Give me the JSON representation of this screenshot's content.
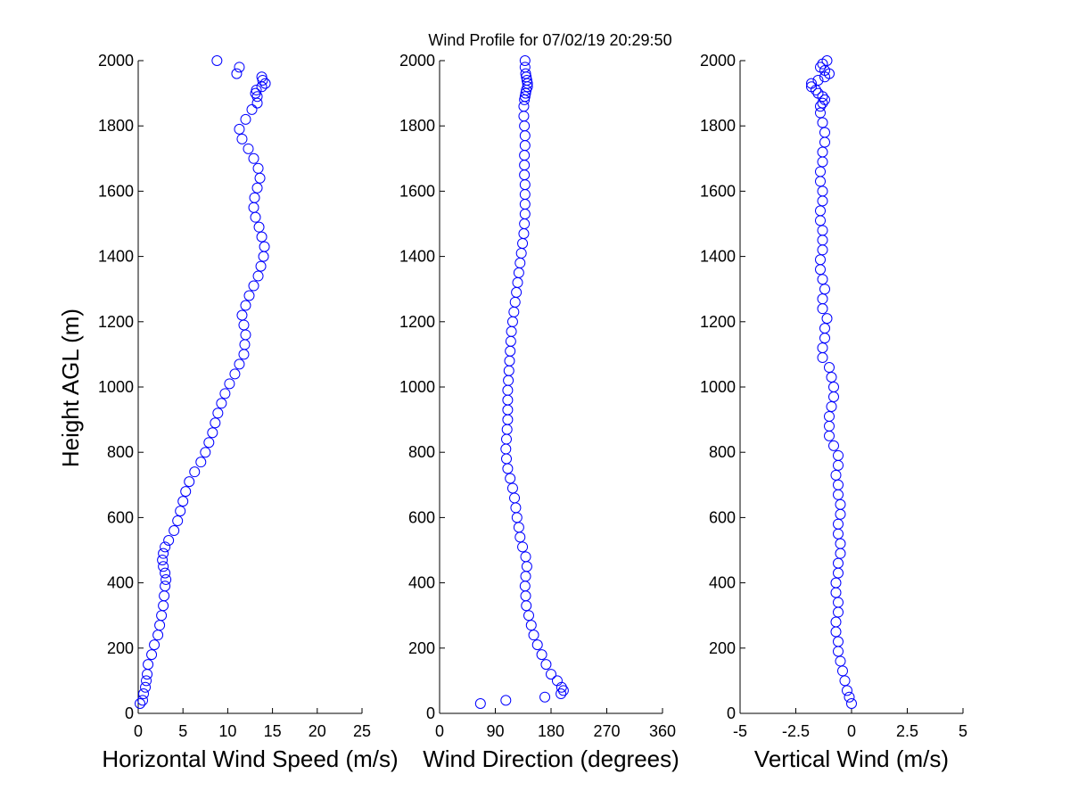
{
  "figure": {
    "title": "Wind Profile for  07/02/19 20:29:50",
    "ylabel": "Height AGL (m)",
    "marker_color": "#0000ff",
    "axis_color": "#000000"
  },
  "chart_data": [
    {
      "type": "scatter",
      "title": "Wind Profile for  07/02/19 20:29:50",
      "xlabel": "Horizontal Wind Speed (m/s)",
      "ylabel": "Height AGL (m)",
      "xlim": [
        0,
        25
      ],
      "ylim": [
        0,
        2000
      ],
      "xticks": [
        "0",
        "5",
        "10",
        "15",
        "20",
        "25"
      ],
      "yticks": [
        "0",
        "200",
        "400",
        "600",
        "800",
        "1000",
        "1200",
        "1400",
        "1600",
        "1800",
        "2000"
      ],
      "grid": false,
      "legend": "none",
      "x": [
        0.2,
        0.5,
        0.6,
        0.8,
        0.9,
        1.0,
        1.1,
        1.5,
        1.8,
        2.2,
        2.4,
        2.6,
        2.8,
        2.9,
        3.0,
        3.1,
        3.0,
        2.8,
        2.7,
        2.8,
        3.0,
        3.4,
        4.0,
        4.4,
        4.7,
        5.0,
        5.3,
        5.7,
        6.3,
        7.0,
        7.5,
        7.9,
        8.3,
        8.6,
        8.9,
        9.3,
        9.7,
        10.2,
        10.8,
        11.3,
        11.8,
        11.9,
        12.0,
        11.8,
        11.6,
        12.0,
        12.4,
        12.9,
        13.4,
        13.7,
        14.0,
        14.1,
        13.8,
        13.5,
        13.1,
        12.9,
        13.0,
        13.3,
        13.6,
        13.4,
        12.9,
        12.3,
        11.6,
        11.3,
        12.0,
        12.7,
        13.3,
        13.3,
        13.1,
        13.2,
        13.8,
        14.2,
        13.9,
        13.8,
        11.0,
        11.3,
        8.8
      ],
      "y": [
        30,
        40,
        60,
        80,
        100,
        120,
        150,
        180,
        210,
        240,
        270,
        300,
        330,
        360,
        390,
        410,
        430,
        450,
        470,
        490,
        510,
        530,
        560,
        590,
        620,
        650,
        680,
        710,
        740,
        770,
        800,
        830,
        860,
        890,
        920,
        950,
        980,
        1010,
        1040,
        1070,
        1100,
        1130,
        1160,
        1190,
        1220,
        1250,
        1280,
        1310,
        1340,
        1370,
        1400,
        1430,
        1460,
        1490,
        1520,
        1550,
        1580,
        1610,
        1640,
        1670,
        1700,
        1730,
        1760,
        1790,
        1820,
        1850,
        1870,
        1890,
        1900,
        1910,
        1920,
        1930,
        1940,
        1950,
        1960,
        1980,
        2000
      ]
    },
    {
      "type": "scatter",
      "xlabel": "Wind Direction (degrees)",
      "xlim": [
        0,
        360
      ],
      "ylim": [
        0,
        2000
      ],
      "xticks": [
        "0",
        "90",
        "180",
        "270",
        "360"
      ],
      "yticks": [
        "0",
        "200",
        "400",
        "600",
        "800",
        "1000",
        "1200",
        "1400",
        "1600",
        "1800",
        "2000"
      ],
      "grid": false,
      "legend": "none",
      "x": [
        66,
        107,
        170,
        196,
        200,
        197,
        190,
        180,
        172,
        165,
        158,
        152,
        148,
        144,
        140,
        139,
        138,
        139,
        141,
        139,
        134,
        130,
        128,
        125,
        123,
        121,
        118,
        114,
        110,
        108,
        107,
        108,
        109,
        110,
        110,
        110,
        110,
        111,
        112,
        113,
        114,
        115,
        116,
        118,
        120,
        122,
        124,
        126,
        128,
        130,
        132,
        134,
        136,
        137,
        138,
        138,
        138,
        138,
        137,
        137,
        137,
        138,
        138,
        137,
        136,
        136,
        137,
        138,
        139,
        140,
        142,
        142,
        141,
        140,
        139,
        138,
        138
      ],
      "y": [
        30,
        40,
        50,
        60,
        70,
        80,
        100,
        120,
        150,
        180,
        210,
        240,
        270,
        300,
        330,
        360,
        390,
        420,
        450,
        480,
        510,
        540,
        570,
        600,
        630,
        660,
        690,
        720,
        750,
        780,
        810,
        840,
        870,
        900,
        930,
        960,
        990,
        1020,
        1050,
        1080,
        1110,
        1140,
        1170,
        1200,
        1230,
        1260,
        1290,
        1320,
        1350,
        1380,
        1410,
        1440,
        1470,
        1500,
        1530,
        1560,
        1590,
        1620,
        1650,
        1680,
        1710,
        1740,
        1770,
        1800,
        1830,
        1860,
        1880,
        1890,
        1900,
        1910,
        1920,
        1930,
        1940,
        1950,
        1960,
        1980,
        2000
      ]
    },
    {
      "type": "scatter",
      "xlabel": "Vertical Wind (m/s)",
      "xlim": [
        -5,
        5
      ],
      "ylim": [
        0,
        2000
      ],
      "xticks": [
        "-5",
        "-2.5",
        "0",
        "2.5",
        "5"
      ],
      "yticks": [
        "0",
        "200",
        "400",
        "600",
        "800",
        "1000",
        "1200",
        "1400",
        "1600",
        "1800",
        "2000"
      ],
      "grid": false,
      "legend": "none",
      "x": [
        0.0,
        -0.1,
        -0.2,
        -0.3,
        -0.4,
        -0.5,
        -0.6,
        -0.6,
        -0.7,
        -0.7,
        -0.6,
        -0.6,
        -0.7,
        -0.7,
        -0.6,
        -0.6,
        -0.5,
        -0.5,
        -0.6,
        -0.6,
        -0.5,
        -0.5,
        -0.6,
        -0.6,
        -0.7,
        -0.6,
        -0.6,
        -0.8,
        -1.0,
        -1.0,
        -1.0,
        -0.9,
        -0.8,
        -0.8,
        -0.9,
        -1.0,
        -1.3,
        -1.3,
        -1.2,
        -1.2,
        -1.1,
        -1.3,
        -1.3,
        -1.2,
        -1.3,
        -1.4,
        -1.4,
        -1.3,
        -1.3,
        -1.3,
        -1.4,
        -1.4,
        -1.3,
        -1.3,
        -1.4,
        -1.4,
        -1.3,
        -1.3,
        -1.2,
        -1.2,
        -1.3,
        -1.4,
        -1.4,
        -1.3,
        -1.2,
        -1.3,
        -1.5,
        -1.6,
        -1.8,
        -1.8,
        -1.5,
        -1.2,
        -1.0,
        -1.2,
        -1.4,
        -1.3,
        -1.1
      ],
      "y": [
        30,
        50,
        70,
        100,
        130,
        160,
        190,
        220,
        250,
        280,
        310,
        340,
        370,
        400,
        430,
        460,
        490,
        520,
        550,
        580,
        610,
        640,
        670,
        700,
        730,
        760,
        790,
        820,
        850,
        880,
        910,
        940,
        970,
        1000,
        1030,
        1060,
        1090,
        1120,
        1150,
        1180,
        1210,
        1240,
        1270,
        1300,
        1330,
        1360,
        1390,
        1420,
        1450,
        1480,
        1510,
        1540,
        1570,
        1600,
        1630,
        1660,
        1690,
        1720,
        1750,
        1780,
        1810,
        1840,
        1860,
        1870,
        1880,
        1890,
        1900,
        1910,
        1920,
        1930,
        1940,
        1950,
        1960,
        1970,
        1980,
        1990,
        2000
      ]
    }
  ]
}
